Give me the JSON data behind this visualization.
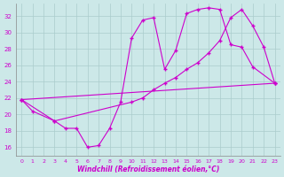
{
  "bg_color": "#cce8e8",
  "grid_color": "#aacccc",
  "line_color": "#cc00cc",
  "xlabel": "Windchill (Refroidissement éolien,°C)",
  "ylim": [
    15.0,
    33.5
  ],
  "xlim": [
    -0.5,
    23.5
  ],
  "yticks": [
    16,
    18,
    20,
    22,
    24,
    26,
    28,
    30,
    32
  ],
  "xticks": [
    0,
    1,
    2,
    3,
    4,
    5,
    6,
    7,
    8,
    9,
    10,
    11,
    12,
    13,
    14,
    15,
    16,
    17,
    18,
    19,
    20,
    21,
    22,
    23
  ],
  "lines": [
    {
      "x": [
        0,
        1,
        3,
        4,
        5,
        6,
        7,
        8,
        9,
        10,
        11,
        12,
        13,
        14,
        15,
        16,
        17,
        18,
        19,
        20,
        21,
        23
      ],
      "y": [
        21.8,
        20.4,
        19.2,
        18.3,
        18.3,
        16.0,
        16.2,
        18.3,
        21.5,
        29.3,
        31.5,
        31.8,
        25.5,
        27.8,
        32.3,
        32.8,
        33.0,
        32.8,
        28.5,
        28.2,
        25.8,
        23.8
      ]
    },
    {
      "x": [
        0,
        3,
        10,
        11,
        12,
        13,
        14,
        15,
        16,
        17,
        18,
        19,
        20,
        21,
        22,
        23
      ],
      "y": [
        21.8,
        19.2,
        21.5,
        22.0,
        23.0,
        23.8,
        24.5,
        25.5,
        26.3,
        27.5,
        29.0,
        31.8,
        32.8,
        30.8,
        28.2,
        23.8
      ]
    },
    {
      "x": [
        0,
        23
      ],
      "y": [
        21.8,
        23.8
      ]
    }
  ]
}
